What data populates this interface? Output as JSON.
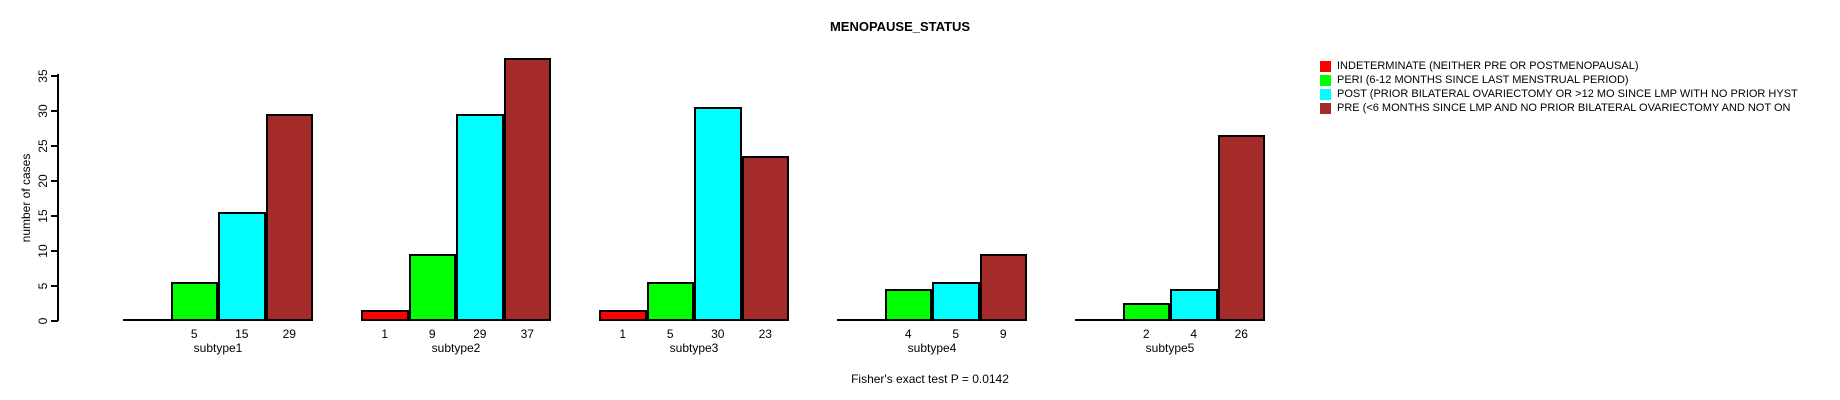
{
  "title": "MENOPAUSE_STATUS",
  "footer": "Fisher's exact test P = 0.0142",
  "chart_data": {
    "type": "bar",
    "title": "MENOPAUSE_STATUS",
    "xlabel": "",
    "ylabel": "number of cases",
    "ylim": [
      0,
      37
    ],
    "yticks": [
      0,
      5,
      10,
      15,
      20,
      25,
      30,
      35
    ],
    "grid": false,
    "legend_position": "right",
    "categories": [
      "subtype1",
      "subtype2",
      "subtype3",
      "subtype4",
      "subtype5"
    ],
    "series": [
      {
        "name": "INDETERMINATE (NEITHER PRE OR POSTMENOPAUSAL)",
        "color": "#FF0000",
        "values": [
          0,
          1,
          1,
          0,
          0
        ]
      },
      {
        "name": "PERI (6-12 MONTHS SINCE LAST MENSTRUAL PERIOD)",
        "color": "#00FF00",
        "values": [
          5,
          9,
          5,
          4,
          2
        ]
      },
      {
        "name": "POST (PRIOR BILATERAL OVARIECTOMY OR >12 MO SINCE LMP WITH NO PRIOR HYST",
        "color": "#00FFFF",
        "values": [
          15,
          29,
          30,
          5,
          4
        ]
      },
      {
        "name": "PRE (<6 MONTHS SINCE LMP AND NO PRIOR BILATERAL OVARIECTOMY AND NOT ON",
        "color": "#A52A2A",
        "values": [
          29,
          37,
          23,
          9,
          26
        ]
      }
    ],
    "bar_value_labels": "values shown under each nonzero bar",
    "annotation": "Fisher's exact test P = 0.0142"
  }
}
